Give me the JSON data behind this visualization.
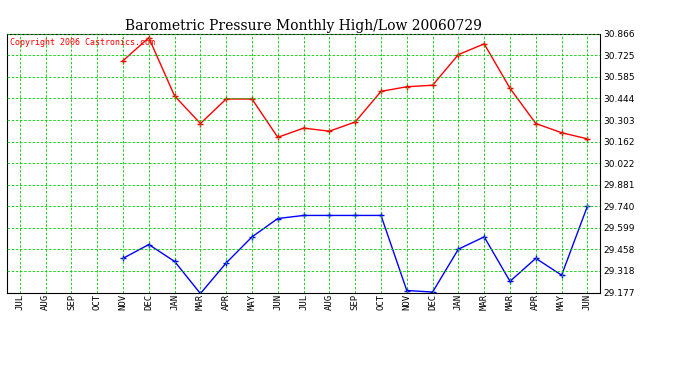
{
  "title": "Barometric Pressure Monthly High/Low 20060729",
  "copyright": "Copyright 2006 Castronics.com",
  "x_labels": [
    "JUL",
    "AUG",
    "SEP",
    "OCT",
    "NOV",
    "DEC",
    "JAN",
    "MAR",
    "APR",
    "MAY",
    "JUN",
    "JUL",
    "AUG",
    "SEP",
    "OCT",
    "NOV",
    "DEC",
    "JAN",
    "MAR",
    "MAR",
    "APR",
    "MAY",
    "JUN"
  ],
  "high_values": [
    null,
    null,
    null,
    null,
    30.69,
    30.84,
    30.46,
    30.28,
    30.44,
    30.44,
    30.19,
    30.25,
    30.23,
    30.29,
    30.49,
    30.52,
    30.53,
    30.73,
    30.8,
    30.51,
    30.28,
    30.22,
    30.18
  ],
  "low_values": [
    null,
    null,
    null,
    null,
    29.4,
    29.49,
    29.38,
    29.17,
    29.37,
    29.54,
    29.66,
    29.68,
    29.68,
    29.68,
    29.68,
    29.19,
    29.18,
    29.46,
    29.54,
    29.25,
    29.4,
    29.29,
    29.74
  ],
  "yticks": [
    29.177,
    29.318,
    29.458,
    29.599,
    29.74,
    29.881,
    30.022,
    30.162,
    30.303,
    30.444,
    30.585,
    30.725,
    30.866
  ],
  "ymin": 29.177,
  "ymax": 30.866,
  "high_color": "red",
  "low_color": "blue",
  "grid_color": "#00cc00",
  "bg_color": "white",
  "plot_bg_color": "white",
  "marker": "+",
  "marker_size": 5,
  "title_fontsize": 10,
  "tick_fontsize": 6.5,
  "copyright_fontsize": 6
}
